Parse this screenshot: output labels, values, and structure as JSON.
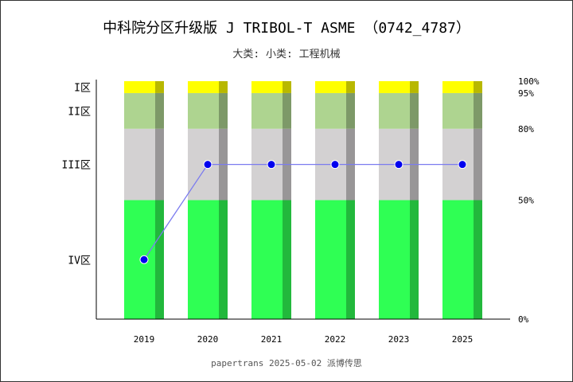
{
  "title": "中科院分区升级版 J TRIBOL-T ASME （0742_4787）",
  "subtitle": "大类:  小类: 工程机械",
  "footer": "papertrans 2025-05-02 派博传思",
  "colors": {
    "zone_I": "#ffff00",
    "zone_II": "#aed490",
    "zone_III": "#d3d1d2",
    "zone_IV": "#2fff54",
    "line": "#7b7bef",
    "marker": "#0000ee"
  },
  "chart_data": {
    "type": "bar",
    "categories": [
      "2019",
      "2020",
      "2021",
      "2022",
      "2023",
      "2025"
    ],
    "zones": [
      {
        "label": "IV区",
        "from": 0,
        "to": 50
      },
      {
        "label": "III区",
        "from": 50,
        "to": 80
      },
      {
        "label": "II区",
        "from": 80,
        "to": 95
      },
      {
        "label": "I区",
        "from": 95,
        "to": 100
      }
    ],
    "right_ticks": [
      "0%",
      "50%",
      "80%",
      "95%",
      "100%"
    ],
    "right_tick_values": [
      0,
      50,
      80,
      95,
      100
    ],
    "series": [
      {
        "values": [
          25,
          65,
          65,
          65,
          65,
          65
        ]
      }
    ],
    "ylim": [
      0,
      100
    ]
  }
}
